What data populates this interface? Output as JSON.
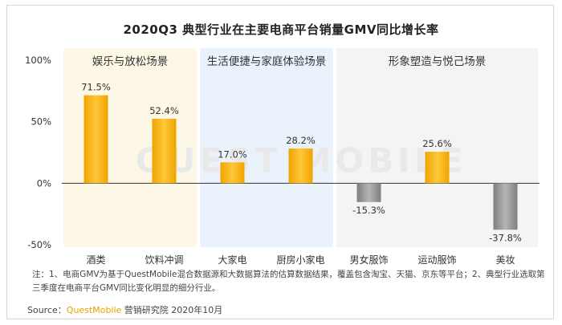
{
  "chart_data": {
    "type": "bar",
    "title": "2020Q3 典型行业在主要电商平台销量GMV同比增长率",
    "categories": [
      "酒类",
      "饮料冲调",
      "大家电",
      "厨房小家电",
      "男女服饰",
      "运动服饰",
      "美妆"
    ],
    "values": [
      71.5,
      52.4,
      17.0,
      28.2,
      -15.3,
      25.6,
      -37.8
    ],
    "value_labels": [
      "71.5%",
      "52.4%",
      "17.0%",
      "28.2%",
      "-15.3%",
      "25.6%",
      "-37.8%"
    ],
    "groups": [
      {
        "name": "娱乐与放松场景",
        "start": 0,
        "end": 1,
        "bg": "#fdf8e6"
      },
      {
        "name": "生活便捷与家庭体验场景",
        "start": 2,
        "end": 3,
        "bg": "#eaf3fb"
      },
      {
        "name": "形象塑造与悦己场景",
        "start": 4,
        "end": 6,
        "bg": "#f4f4f4"
      }
    ],
    "y_ticks": [
      {
        "value": 100,
        "label": "100%"
      },
      {
        "value": 50,
        "label": "50%"
      },
      {
        "value": 0,
        "label": "0%"
      },
      {
        "value": -50,
        "label": "-50%"
      }
    ],
    "ylim": [
      -50,
      100
    ],
    "colors": {
      "positive": "#f2a900",
      "positive_light": "#ffd24a",
      "negative": "#8c8c8c",
      "negative_light": "#c4c4c4"
    }
  },
  "watermark": "QUEST MOBILE",
  "note": "注：1、电商GMV为基于QuestMobile混合数据源和大数据算法的估算数据结果，覆盖包含淘宝、天猫、京东等平台；2、典型行业选取第三季度在电商平台GMV同比变化明显的细分行业。",
  "source": {
    "prefix": "Source：",
    "brand": "QuestMobile",
    "suffix": " 营销研究院 2020年10月"
  }
}
